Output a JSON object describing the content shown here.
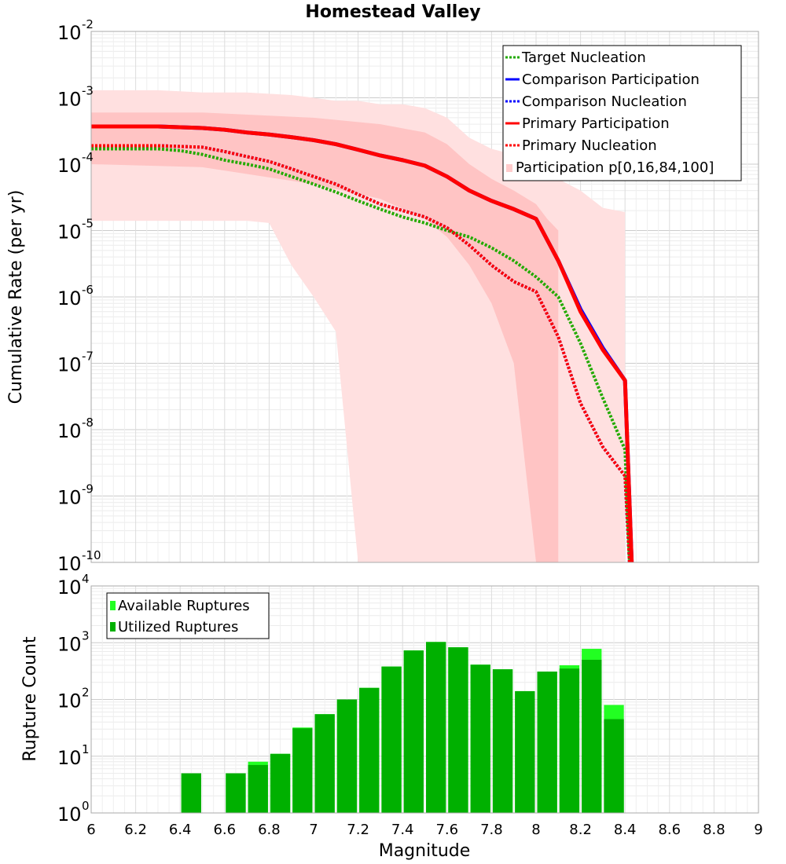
{
  "chart_data": [
    {
      "type": "line",
      "title": "Homestead Valley",
      "ylabel": "Cumulative Rate (per yr)",
      "xlabel": "",
      "xlim": [
        6,
        9
      ],
      "ylim": [
        1e-10,
        0.01
      ],
      "yscale": "log",
      "ytick_labels": [
        {
          "base": "10",
          "exp": "-2"
        },
        {
          "base": "10",
          "exp": "-3"
        },
        {
          "base": "10",
          "exp": "-4"
        },
        {
          "base": "10",
          "exp": "-5"
        },
        {
          "base": "10",
          "exp": "-6"
        },
        {
          "base": "10",
          "exp": "-7"
        },
        {
          "base": "10",
          "exp": "-8"
        },
        {
          "base": "10",
          "exp": "-9"
        },
        {
          "base": "10",
          "exp": "-10"
        }
      ],
      "legend": [
        {
          "label": "Target Nucleation",
          "color": "#22aa00",
          "style": "dotted"
        },
        {
          "label": "Comparison Participation",
          "color": "#0000ff",
          "style": "solid"
        },
        {
          "label": "Comparison Nucleation",
          "color": "#0000ff",
          "style": "dotted"
        },
        {
          "label": "Primary Participation",
          "color": "#ff0000",
          "style": "solid"
        },
        {
          "label": "Primary Nucleation",
          "color": "#ff0000",
          "style": "dotted"
        },
        {
          "label": "Participation p[0,16,84,100]",
          "color": "#ffcccc",
          "style": "fill"
        }
      ],
      "legend_position": "top-right",
      "bands": [
        {
          "name": "p0-p100",
          "color": "#ffe0e0",
          "x": [
            6.0,
            6.1,
            6.2,
            6.3,
            6.4,
            6.5,
            6.6,
            6.7,
            6.8,
            6.9,
            7.0,
            7.1,
            7.2,
            7.3,
            7.4,
            7.5,
            7.6,
            7.7,
            7.8,
            7.9,
            8.0,
            8.1,
            8.2,
            8.3,
            8.4
          ],
          "upper": [
            0.0013,
            0.0013,
            0.0013,
            0.0013,
            0.00125,
            0.0012,
            0.0012,
            0.0012,
            0.00115,
            0.0011,
            0.001,
            0.0009,
            0.0009,
            0.0008,
            0.0008,
            0.0007,
            0.0005,
            0.00025,
            0.00017,
            0.00014,
            0.0001,
            6e-05,
            4e-05,
            2.2e-05,
            1.9e-05
          ],
          "lower": [
            1.4e-05,
            1.4e-05,
            1.4e-05,
            1.4e-05,
            1.4e-05,
            1.4e-05,
            1.4e-05,
            1.4e-05,
            1.3e-05,
            3e-06,
            1e-06,
            3e-07,
            1e-10,
            1e-10,
            1e-10,
            1e-10,
            1e-10,
            1e-10,
            1e-10,
            1e-10,
            1e-10,
            1e-10,
            1e-10,
            1e-10,
            1e-10
          ]
        },
        {
          "name": "p16-p84",
          "color": "#ffc4c4",
          "x": [
            6.0,
            6.5,
            7.0,
            7.3,
            7.5,
            7.6,
            7.7,
            7.8,
            7.9,
            8.0,
            8.05,
            8.1
          ],
          "upper": [
            0.0006,
            0.0006,
            0.0005,
            0.0004,
            0.0003,
            0.0002,
            0.0001,
            6e-05,
            4e-05,
            2.5e-05,
            1.5e-05,
            1e-05
          ],
          "lower": [
            0.0001,
            9e-05,
            5e-05,
            3e-05,
            1.5e-05,
            8e-06,
            3e-06,
            8e-07,
            1e-07,
            1e-10,
            1e-10,
            1e-10
          ]
        }
      ],
      "series": [
        {
          "name": "Target Nucleation",
          "color": "#22aa00",
          "style": "dotted",
          "width": 4,
          "x": [
            6.0,
            6.1,
            6.2,
            6.3,
            6.4,
            6.5,
            6.6,
            6.7,
            6.8,
            6.9,
            7.0,
            7.1,
            7.2,
            7.3,
            7.4,
            7.5,
            7.6,
            7.7,
            7.8,
            7.9,
            8.0,
            8.1,
            8.2,
            8.3,
            8.4,
            8.42
          ],
          "y": [
            0.00017,
            0.00017,
            0.00017,
            0.00017,
            0.00016,
            0.00014,
            0.000115,
            0.0001,
            8.5e-05,
            6.5e-05,
            5e-05,
            3.8e-05,
            2.8e-05,
            2.1e-05,
            1.6e-05,
            1.3e-05,
            1e-05,
            8e-06,
            5.5e-06,
            3.5e-06,
            2e-06,
            1e-06,
            2e-07,
            3e-08,
            5e-09,
            1e-10
          ]
        },
        {
          "name": "Comparison Participation",
          "color": "#0000ff",
          "style": "solid",
          "width": 5,
          "x": [
            6.0,
            6.1,
            6.2,
            6.3,
            6.4,
            6.5,
            6.6,
            6.7,
            6.8,
            6.9,
            7.0,
            7.1,
            7.2,
            7.3,
            7.4,
            7.5,
            7.6,
            7.7,
            7.8,
            7.9,
            8.0,
            8.1,
            8.2,
            8.3,
            8.4,
            8.43
          ],
          "y": [
            0.00037,
            0.00037,
            0.00037,
            0.00037,
            0.00036,
            0.00035,
            0.00033,
            0.0003,
            0.00028,
            0.000255,
            0.00023,
            0.0002,
            0.000165,
            0.000135,
            0.000115,
            9.5e-05,
            6.5e-05,
            4e-05,
            2.8e-05,
            2.1e-05,
            1.5e-05,
            3.5e-06,
            6.5e-07,
            1.7e-07,
            5.5e-08,
            1e-10
          ]
        },
        {
          "name": "Comparison Nucleation",
          "color": "#0000ff",
          "style": "dotted",
          "width": 4,
          "x": [
            6.0,
            6.1,
            6.2,
            6.3,
            6.4,
            6.5,
            6.6,
            6.7,
            6.8,
            6.9,
            7.0,
            7.1,
            7.2,
            7.3,
            7.4,
            7.5,
            7.6,
            7.7,
            7.8,
            7.9,
            8.0,
            8.1,
            8.2,
            8.3,
            8.4,
            8.42
          ],
          "y": [
            0.00019,
            0.00019,
            0.00019,
            0.00019,
            0.000185,
            0.00018,
            0.000155,
            0.00013,
            0.00011,
            8.5e-05,
            6.5e-05,
            5e-05,
            3.5e-05,
            2.5e-05,
            2e-05,
            1.6e-05,
            1.1e-05,
            6e-06,
            3e-06,
            1.7e-06,
            1.2e-06,
            2.5e-07,
            2.5e-08,
            5.5e-09,
            2e-09,
            1e-10
          ]
        },
        {
          "name": "Primary Participation",
          "color": "#ff0000",
          "style": "solid",
          "width": 5,
          "x": [
            6.0,
            6.1,
            6.2,
            6.3,
            6.4,
            6.5,
            6.6,
            6.7,
            6.8,
            6.9,
            7.0,
            7.1,
            7.2,
            7.3,
            7.4,
            7.5,
            7.6,
            7.7,
            7.8,
            7.9,
            8.0,
            8.1,
            8.2,
            8.3,
            8.4,
            8.43
          ],
          "y": [
            0.00037,
            0.00037,
            0.00037,
            0.00037,
            0.00036,
            0.00035,
            0.00033,
            0.0003,
            0.00028,
            0.000255,
            0.00023,
            0.0002,
            0.000165,
            0.000135,
            0.000115,
            9.5e-05,
            6.5e-05,
            4e-05,
            2.8e-05,
            2.1e-05,
            1.5e-05,
            3.5e-06,
            6e-07,
            1.6e-07,
            5.5e-08,
            1e-10
          ]
        },
        {
          "name": "Primary Nucleation",
          "color": "#ff0000",
          "style": "dotted",
          "width": 4,
          "x": [
            6.0,
            6.1,
            6.2,
            6.3,
            6.4,
            6.5,
            6.6,
            6.7,
            6.8,
            6.9,
            7.0,
            7.1,
            7.2,
            7.3,
            7.4,
            7.5,
            7.6,
            7.7,
            7.8,
            7.9,
            8.0,
            8.1,
            8.2,
            8.3,
            8.4,
            8.42
          ],
          "y": [
            0.00019,
            0.00019,
            0.00019,
            0.00019,
            0.000185,
            0.00018,
            0.000155,
            0.00013,
            0.00011,
            8.5e-05,
            6.5e-05,
            5e-05,
            3.5e-05,
            2.5e-05,
            2e-05,
            1.6e-05,
            1.1e-05,
            6e-06,
            3e-06,
            1.7e-06,
            1.2e-06,
            2.5e-07,
            2.5e-08,
            5.5e-09,
            2e-09,
            1e-10
          ]
        }
      ]
    },
    {
      "type": "bar",
      "ylabel": "Rupture Count",
      "xlabel": "Magnitude",
      "xlim": [
        6,
        9
      ],
      "ylim": [
        1,
        10000
      ],
      "yscale": "log",
      "xticks": [
        "6",
        "6.2",
        "6.4",
        "6.6",
        "6.8",
        "7",
        "7.2",
        "7.4",
        "7.6",
        "7.8",
        "8",
        "8.2",
        "8.4",
        "8.6",
        "8.8",
        "9"
      ],
      "ytick_labels": [
        {
          "base": "10",
          "exp": "4"
        },
        {
          "base": "10",
          "exp": "3"
        },
        {
          "base": "10",
          "exp": "2"
        },
        {
          "base": "10",
          "exp": "1"
        },
        {
          "base": "10",
          "exp": "0"
        }
      ],
      "legend": [
        {
          "label": "Available Ruptures",
          "color": "#22ff22"
        },
        {
          "label": "Utilized Ruptures",
          "color": "#00b000"
        }
      ],
      "legend_position": "top-left",
      "bin_width": 0.1,
      "bins": [
        6.45,
        6.55,
        6.65,
        6.75,
        6.85,
        6.95,
        7.05,
        7.15,
        7.25,
        7.35,
        7.45,
        7.55,
        7.65,
        7.75,
        7.85,
        7.95,
        8.05,
        8.15,
        8.25,
        8.35
      ],
      "series": [
        {
          "name": "Available Ruptures",
          "color": "#22ff22",
          "values": [
            5,
            0,
            5,
            8,
            11,
            32,
            55,
            100,
            160,
            380,
            730,
            1030,
            830,
            410,
            340,
            140,
            310,
            400,
            780,
            80
          ]
        },
        {
          "name": "Utilized Ruptures",
          "color": "#00b000",
          "values": [
            5,
            0,
            5,
            7,
            11,
            31,
            55,
            100,
            160,
            380,
            730,
            1030,
            830,
            410,
            340,
            140,
            310,
            350,
            500,
            45
          ]
        }
      ]
    }
  ]
}
